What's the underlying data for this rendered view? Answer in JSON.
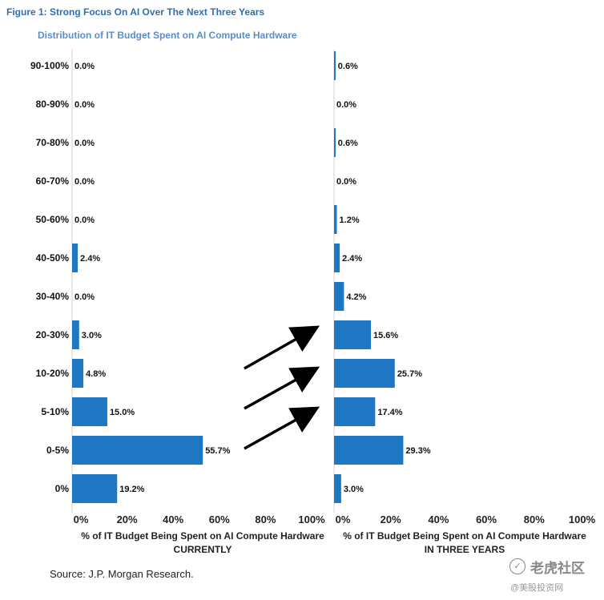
{
  "figure_title": "Figure 1: Strong Focus On AI Over The Next Three Years",
  "subtitle": "Distribution of IT Budget Spent on AI Compute Hardware",
  "source": "Source: J.P. Morgan Research.",
  "watermark": {
    "name": "老虎社区",
    "handle": "@美股投资网"
  },
  "colors": {
    "bar": "#1f77c4",
    "title": "#2f6eb5",
    "subtitle": "#5b8dc8",
    "arrow": "#000000"
  },
  "chart_data": [
    {
      "type": "bar",
      "orientation": "horizontal",
      "categories": [
        "90-100%",
        "80-90%",
        "70-80%",
        "60-70%",
        "50-60%",
        "40-50%",
        "30-40%",
        "20-30%",
        "10-20%",
        "5-10%",
        "0-5%",
        "0%"
      ],
      "values": [
        0.0,
        0.0,
        0.0,
        0.0,
        0.0,
        2.4,
        0.0,
        3.0,
        4.8,
        15.0,
        55.7,
        19.2
      ],
      "labels": [
        "0.0%",
        "0.0%",
        "0.0%",
        "0.0%",
        "0.0%",
        "2.4%",
        "0.0%",
        "3.0%",
        "4.8%",
        "15.0%",
        "55.7%",
        "19.2%"
      ],
      "xticks": [
        "0%",
        "20%",
        "40%",
        "60%",
        "80%",
        "100%"
      ],
      "xlabel": "% of IT Budget Being Spent on AI Compute Hardware",
      "xlabel2": "CURRENTLY",
      "xlim": [
        0,
        100
      ],
      "grid": false
    },
    {
      "type": "bar",
      "orientation": "horizontal",
      "categories": [
        "90-100%",
        "80-90%",
        "70-80%",
        "60-70%",
        "50-60%",
        "40-50%",
        "30-40%",
        "20-30%",
        "10-20%",
        "5-10%",
        "0-5%",
        "0%"
      ],
      "values": [
        0.6,
        0.0,
        0.6,
        0.0,
        1.2,
        2.4,
        4.2,
        15.6,
        25.7,
        17.4,
        29.3,
        3.0
      ],
      "labels": [
        "0.6%",
        "0.0%",
        "0.6%",
        "0.0%",
        "1.2%",
        "2.4%",
        "4.2%",
        "15.6%",
        "25.7%",
        "17.4%",
        "29.3%",
        "3.0%"
      ],
      "xticks": [
        "0%",
        "20%",
        "40%",
        "60%",
        "80%",
        "100%"
      ],
      "xlabel": "% of IT Budget Being Spent on AI Compute Hardware",
      "xlabel2": "IN THREE YEARS",
      "xlim": [
        0,
        100
      ],
      "grid": false
    }
  ]
}
